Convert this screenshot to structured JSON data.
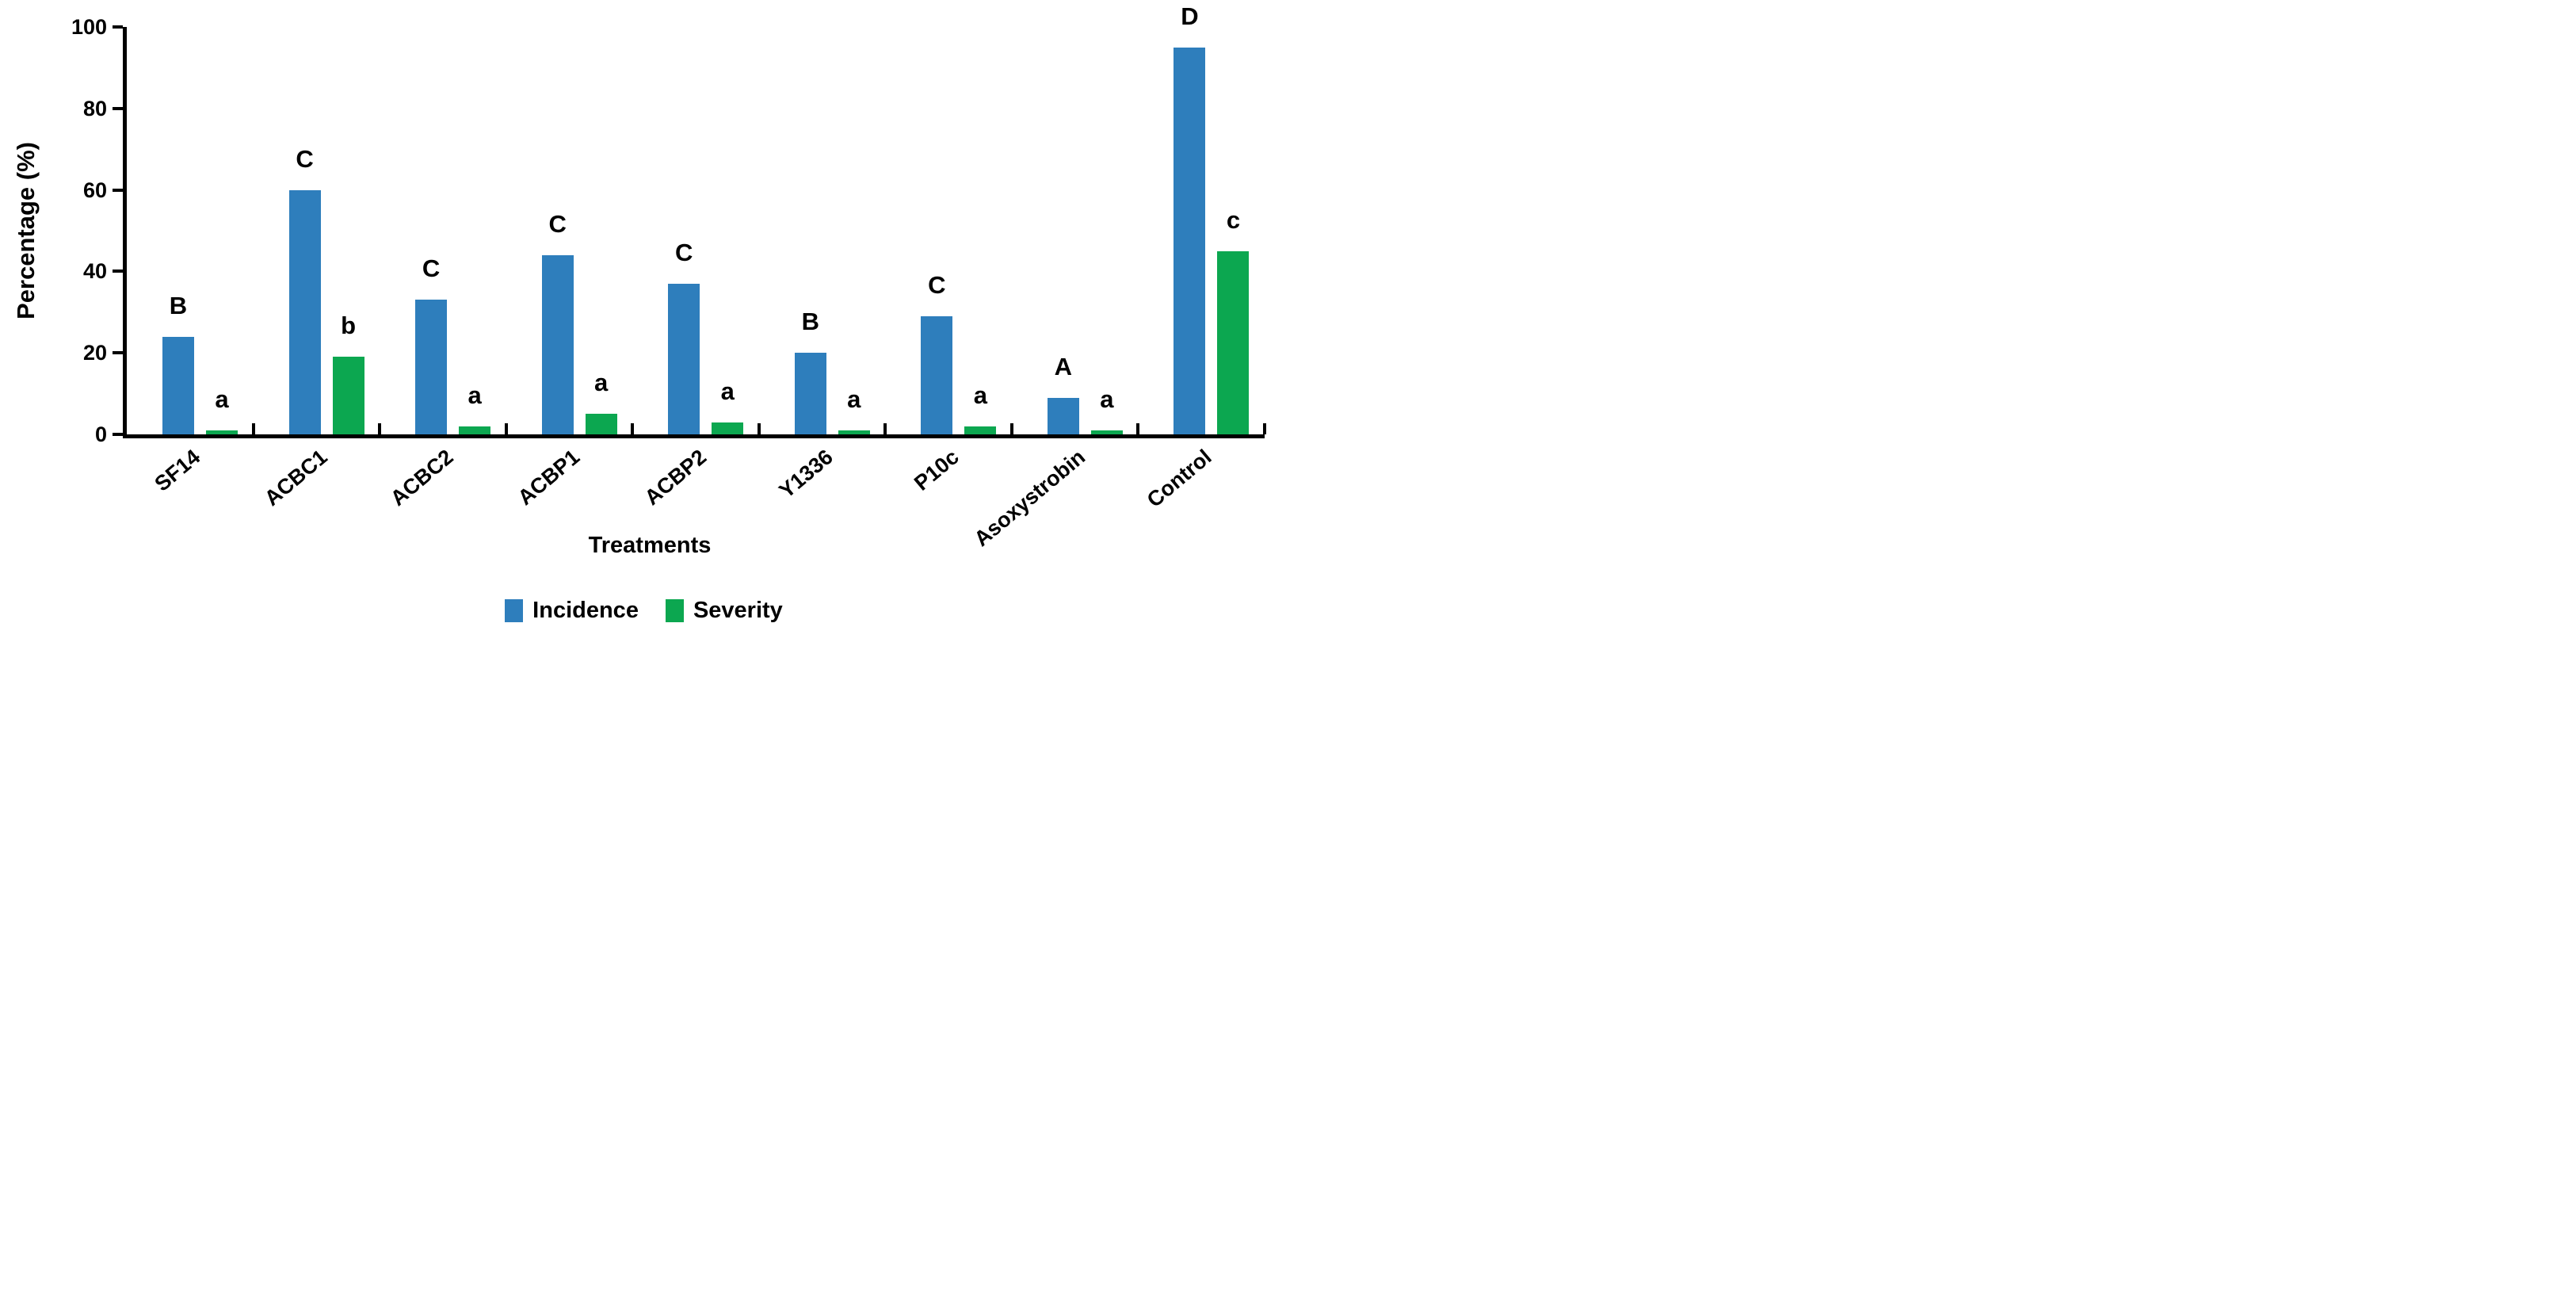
{
  "chart_data": {
    "type": "bar",
    "title": "",
    "categories": [
      "SF14",
      "ACBC1",
      "ACBC2",
      "ACBP1",
      "ACBP2",
      "Y1336",
      "P10c",
      "Asoxystrobin",
      "Control"
    ],
    "series": [
      {
        "name": "Incidence",
        "color": "#2E7EBC",
        "values": [
          24,
          60,
          33,
          44,
          37,
          20,
          29,
          9,
          95
        ],
        "letters": [
          "B",
          "C",
          "C",
          "C",
          "C",
          "B",
          "C",
          "A",
          "D"
        ]
      },
      {
        "name": "Severity",
        "color": "#0CA750",
        "values": [
          1,
          19,
          2,
          5,
          3,
          1,
          2,
          1,
          45
        ],
        "letters": [
          "a",
          "b",
          "a",
          "a",
          "a",
          "a",
          "a",
          "a",
          "c"
        ]
      }
    ],
    "xlabel": "Treatments",
    "ylabel": "Percentage (%)",
    "ylim": [
      0,
      100
    ],
    "yticks": [
      0,
      20,
      40,
      60,
      80,
      100
    ],
    "grid": false,
    "legend_position": "bottom",
    "axis_color": "#000000",
    "background_color": "#FFFFFF"
  }
}
